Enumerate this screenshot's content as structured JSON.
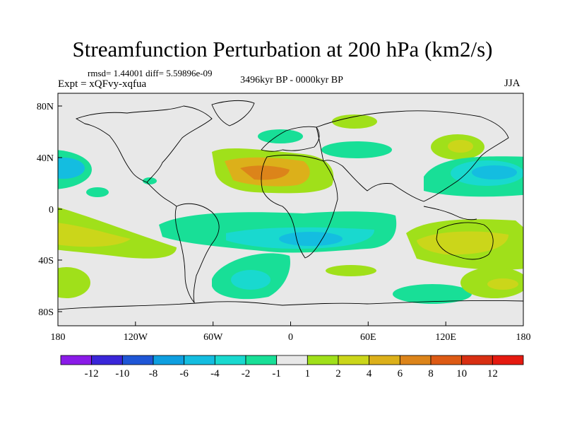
{
  "title": "Streamfunction Perturbation at 200 hPa (km2/s)",
  "stats_text": "rmsd= 1.44001 diff= 5.59896e-09",
  "period": "3496kyr BP - 0000kyr BP",
  "experiment": "Expt = xQFvy-xqfua",
  "season": "JJA",
  "lat_labels": [
    "80N",
    "40N",
    "0",
    "40S",
    "80S"
  ],
  "lon_labels": [
    "180",
    "120W",
    "60W",
    "0",
    "60E",
    "120E",
    "180"
  ],
  "colorbar": {
    "labels": [
      "-12",
      "-10",
      "-8",
      "-6",
      "-4",
      "-2",
      "-1",
      "1",
      "2",
      "4",
      "6",
      "8",
      "10",
      "12"
    ],
    "colors": [
      "#8a1be8",
      "#3a26d9",
      "#1f56d6",
      "#0e9fe0",
      "#14bde0",
      "#19d9cf",
      "#18df97",
      "#e8e8e8",
      "#a0e01a",
      "#cbd61a",
      "#dcb01a",
      "#dc841a",
      "#dd5a14",
      "#d82f12",
      "#e51a10"
    ]
  },
  "map_colors": {
    "ocean_background": "#e8e8e8",
    "neg_1_2": "#18df97",
    "neg_2_4": "#19d9cf",
    "neg_4_6": "#14bde0",
    "pos_1_2": "#a0e01a",
    "pos_2_4": "#cbd61a",
    "pos_4_6": "#dcb01a"
  }
}
